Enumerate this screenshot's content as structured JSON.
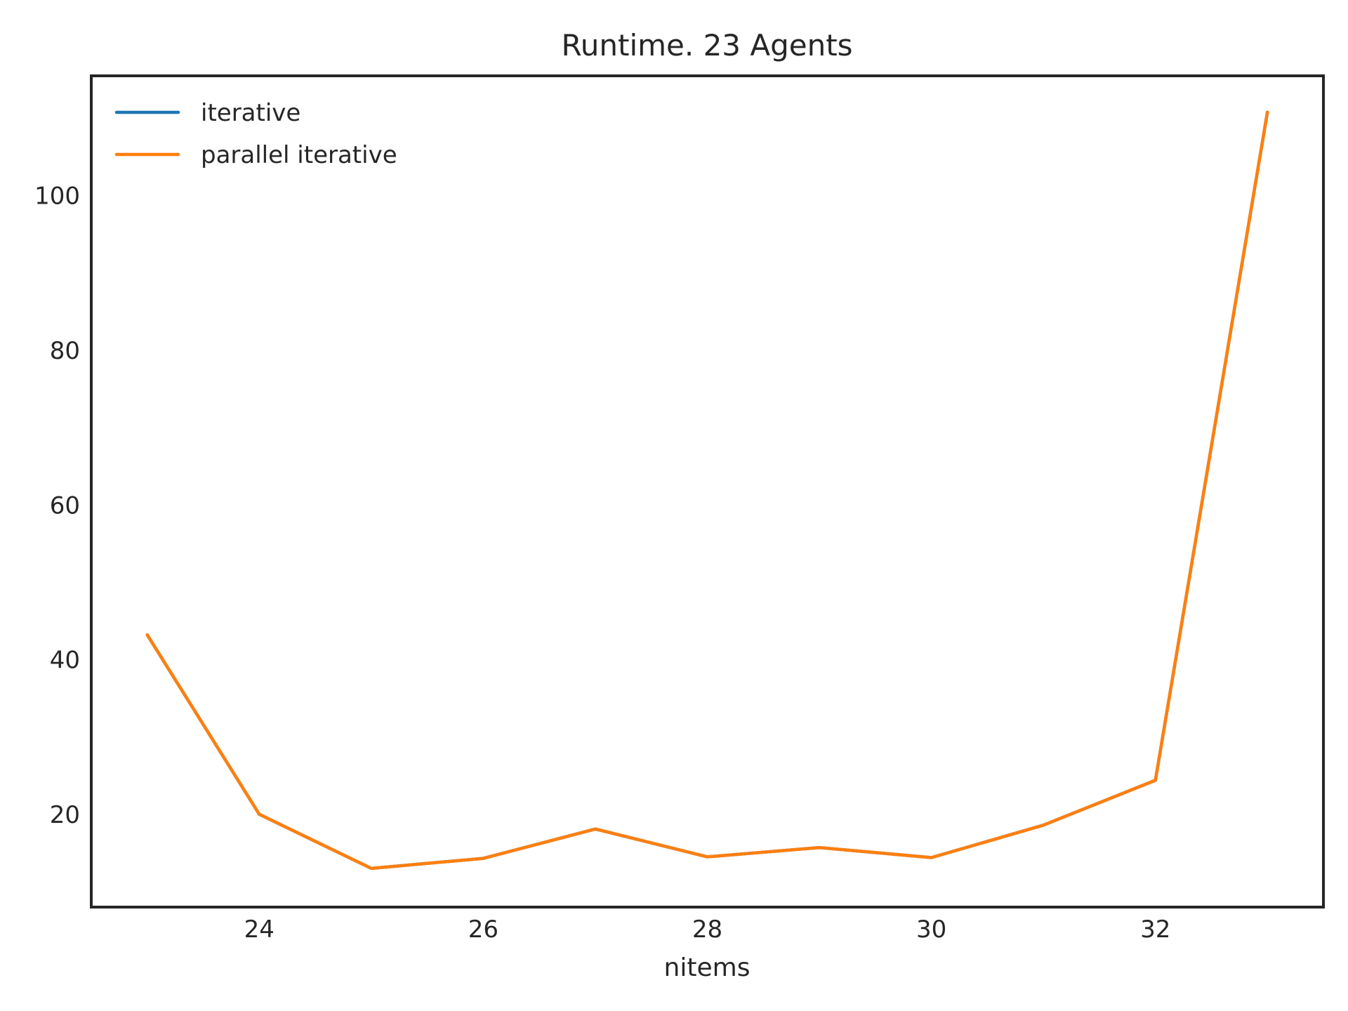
{
  "chart_data": {
    "type": "line",
    "title": "Runtime. 23 Agents",
    "xlabel": "nitems",
    "ylabel": "",
    "xlim": [
      22.5,
      33.5
    ],
    "ylim": [
      8,
      115.5
    ],
    "xticks": [
      24,
      26,
      28,
      30,
      32
    ],
    "yticks": [
      20,
      40,
      60,
      80,
      100
    ],
    "grid": false,
    "legend_position": "upper left",
    "x": [
      23,
      24,
      25,
      26,
      27,
      28,
      29,
      30,
      31,
      32,
      33
    ],
    "series": [
      {
        "name": "iterative",
        "color": "#1f77b4",
        "values": [
          43.2,
          20.0,
          13.0,
          14.3,
          18.1,
          14.5,
          15.7,
          14.4,
          18.6,
          24.4,
          110.8
        ]
      },
      {
        "name": "parallel iterative",
        "color": "#ff7f0e",
        "values": [
          43.2,
          20.0,
          13.0,
          14.3,
          18.1,
          14.5,
          15.7,
          14.4,
          18.6,
          24.4,
          110.8
        ]
      }
    ]
  }
}
